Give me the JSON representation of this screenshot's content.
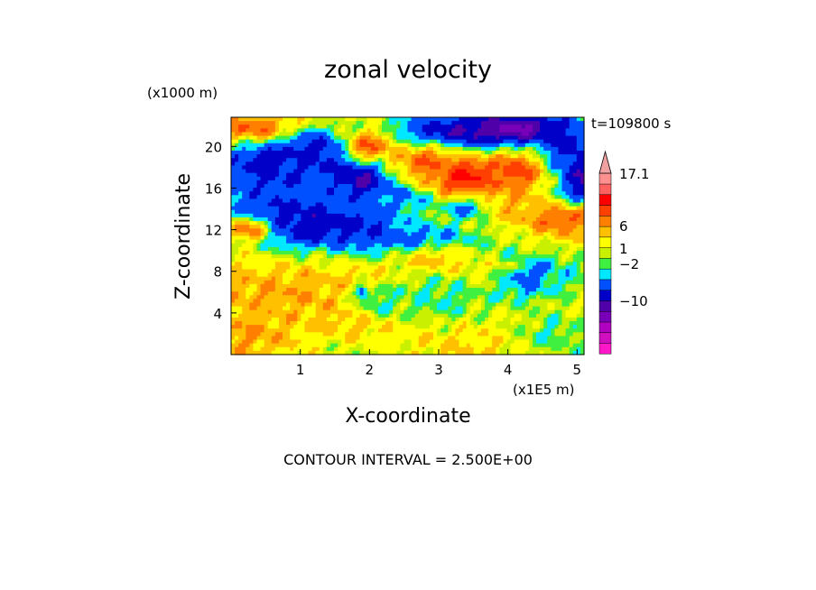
{
  "chart_data": {
    "type": "heatmap",
    "title": "zonal velocity",
    "xlabel": "X-coordinate",
    "ylabel": "Z-coordinate",
    "x_units": "(x1E5 m)",
    "y_units": "(x1000 m)",
    "time_label": "t=109800 s",
    "footer": "CONTOUR INTERVAL = 2.500E+00",
    "xlim": [
      0,
      5.1
    ],
    "ylim": [
      0,
      22.8
    ],
    "x_ticks": [
      1,
      2,
      3,
      4,
      5
    ],
    "y_ticks": [
      4,
      8,
      12,
      16,
      20
    ],
    "x_tick_labels": [
      "1",
      "2",
      "3",
      "4",
      "5"
    ],
    "y_tick_labels": [
      "4",
      "8",
      "12",
      "16",
      "20"
    ],
    "colorbar": {
      "labels": [
        "17.1",
        "6",
        "1",
        "−2",
        "−10"
      ],
      "levels": [
        {
          "from": -20,
          "to": -17.5,
          "color": "#ff18c8"
        },
        {
          "from": -17.5,
          "to": -15,
          "color": "#d010c0"
        },
        {
          "from": -15,
          "to": -12.5,
          "color": "#b000c0"
        },
        {
          "from": -12.5,
          "to": -10,
          "color": "#7800b8"
        },
        {
          "from": -10,
          "to": -7.5,
          "color": "#5000a8"
        },
        {
          "from": -7.5,
          "to": -5,
          "color": "#0000c8"
        },
        {
          "from": -5,
          "to": -2.5,
          "color": "#0050ff"
        },
        {
          "from": -2.5,
          "to": -1,
          "color": "#00e8ff"
        },
        {
          "from": -1,
          "to": 0,
          "color": "#40f040"
        },
        {
          "from": 0,
          "to": 1,
          "color": "#c8f000"
        },
        {
          "from": 1,
          "to": 2.5,
          "color": "#ffff00"
        },
        {
          "from": 2.5,
          "to": 4,
          "color": "#ffc000"
        },
        {
          "from": 4,
          "to": 6,
          "color": "#ff8000"
        },
        {
          "from": 6,
          "to": 8.5,
          "color": "#ff4000"
        },
        {
          "from": 8.5,
          "to": 11,
          "color": "#ff0000"
        },
        {
          "from": 11,
          "to": 13.5,
          "color": "#ff6060"
        },
        {
          "from": 13.5,
          "to": 17.1,
          "color": "#ff9090"
        },
        {
          "from": 17.1,
          "to": 20,
          "color": "#f0a0a0"
        }
      ]
    },
    "features": [
      {
        "x": 0.5,
        "z": 13.0,
        "value": -7,
        "sx": 0.55,
        "sz": 1.5
      },
      {
        "x": 1.2,
        "z": 12.5,
        "value": -7,
        "sx": 0.55,
        "sz": 1.6
      },
      {
        "x": 1.9,
        "z": 12.2,
        "value": -6,
        "sx": 0.35,
        "sz": 1.2
      },
      {
        "x": 2.6,
        "z": 11.0,
        "value": -4,
        "sx": 0.5,
        "sz": 0.8
      },
      {
        "x": 0.5,
        "z": 18.0,
        "value": -6,
        "sx": 0.45,
        "sz": 2.0
      },
      {
        "x": 1.2,
        "z": 19.5,
        "value": -7,
        "sx": 0.4,
        "sz": 1.5
      },
      {
        "x": 1.9,
        "z": 17.0,
        "value": -9,
        "sx": 0.3,
        "sz": 1.2
      },
      {
        "x": 1.0,
        "z": 17.5,
        "value": -5,
        "sx": 0.3,
        "sz": 1.5
      },
      {
        "x": 3.2,
        "z": 21.0,
        "value": -8,
        "sx": 0.7,
        "sz": 1.6
      },
      {
        "x": 4.2,
        "z": 21.6,
        "value": -12,
        "sx": 0.5,
        "sz": 1.1
      },
      {
        "x": 4.8,
        "z": 20.0,
        "value": -6,
        "sx": 0.35,
        "sz": 1.8
      },
      {
        "x": 5.1,
        "z": 16.5,
        "value": -8,
        "sx": 0.25,
        "sz": 2.0
      },
      {
        "x": 3.4,
        "z": 17.0,
        "value": 11,
        "sx": 0.35,
        "sz": 1.4
      },
      {
        "x": 4.1,
        "z": 17.5,
        "value": 7,
        "sx": 0.35,
        "sz": 1.6
      },
      {
        "x": 2.8,
        "z": 18.5,
        "value": 6,
        "sx": 0.4,
        "sz": 1.4
      },
      {
        "x": 2.0,
        "z": 20.0,
        "value": 6,
        "sx": 0.25,
        "sz": 1.1
      },
      {
        "x": 0.3,
        "z": 21.8,
        "value": 6,
        "sx": 0.4,
        "sz": 0.8
      },
      {
        "x": 4.8,
        "z": 13.0,
        "value": 6,
        "sx": 0.45,
        "sz": 1.2
      },
      {
        "x": 3.8,
        "z": 14.5,
        "value": 4,
        "sx": 0.5,
        "sz": 1.2
      },
      {
        "x": 0.2,
        "z": 12.0,
        "value": 5,
        "sx": 0.3,
        "sz": 1.0
      },
      {
        "x": 1.0,
        "z": 6.0,
        "value": 4,
        "sx": 0.9,
        "sz": 1.5
      },
      {
        "x": 2.0,
        "z": 3.5,
        "value": 4,
        "sx": 0.7,
        "sz": 1.5
      },
      {
        "x": 1.8,
        "z": 7.0,
        "value": 3,
        "sx": 0.6,
        "sz": 1.2
      },
      {
        "x": 3.0,
        "z": 9.0,
        "value": 4,
        "sx": 0.4,
        "sz": 1.0
      },
      {
        "x": 0.3,
        "z": 2.0,
        "value": 4,
        "sx": 0.4,
        "sz": 1.5
      },
      {
        "x": 3.5,
        "z": 1.5,
        "value": 3,
        "sx": 0.5,
        "sz": 1.2
      },
      {
        "x": 3.9,
        "z": 4.0,
        "value": 2,
        "sx": 0.8,
        "sz": 1.5
      },
      {
        "x": 4.6,
        "z": 8.0,
        "value": -1.5,
        "sx": 0.4,
        "sz": 1.5
      },
      {
        "x": 4.2,
        "z": 6.5,
        "value": -2.5,
        "sx": 0.35,
        "sz": 1.2
      },
      {
        "x": 3.0,
        "z": 5.5,
        "value": -1,
        "sx": 0.6,
        "sz": 2.0
      },
      {
        "x": 2.2,
        "z": 5.0,
        "value": -0.8,
        "sx": 0.35,
        "sz": 1.2
      },
      {
        "x": 4.6,
        "z": 2.0,
        "value": -0.8,
        "sx": 0.4,
        "sz": 1.8
      },
      {
        "x": 1.9,
        "z": 6.0,
        "value": -5,
        "sx": 0.06,
        "sz": 0.4
      },
      {
        "x": 4.4,
        "z": 8.0,
        "value": -5,
        "sx": 0.07,
        "sz": 0.5
      },
      {
        "x": 4.2,
        "z": 7.5,
        "value": -5,
        "sx": 0.06,
        "sz": 0.4
      },
      {
        "x": 3.4,
        "z": 14.0,
        "value": -3,
        "sx": 0.25,
        "sz": 0.8
      },
      {
        "x": 2.5,
        "z": 15.0,
        "value": -3,
        "sx": 0.25,
        "sz": 0.6
      }
    ]
  }
}
